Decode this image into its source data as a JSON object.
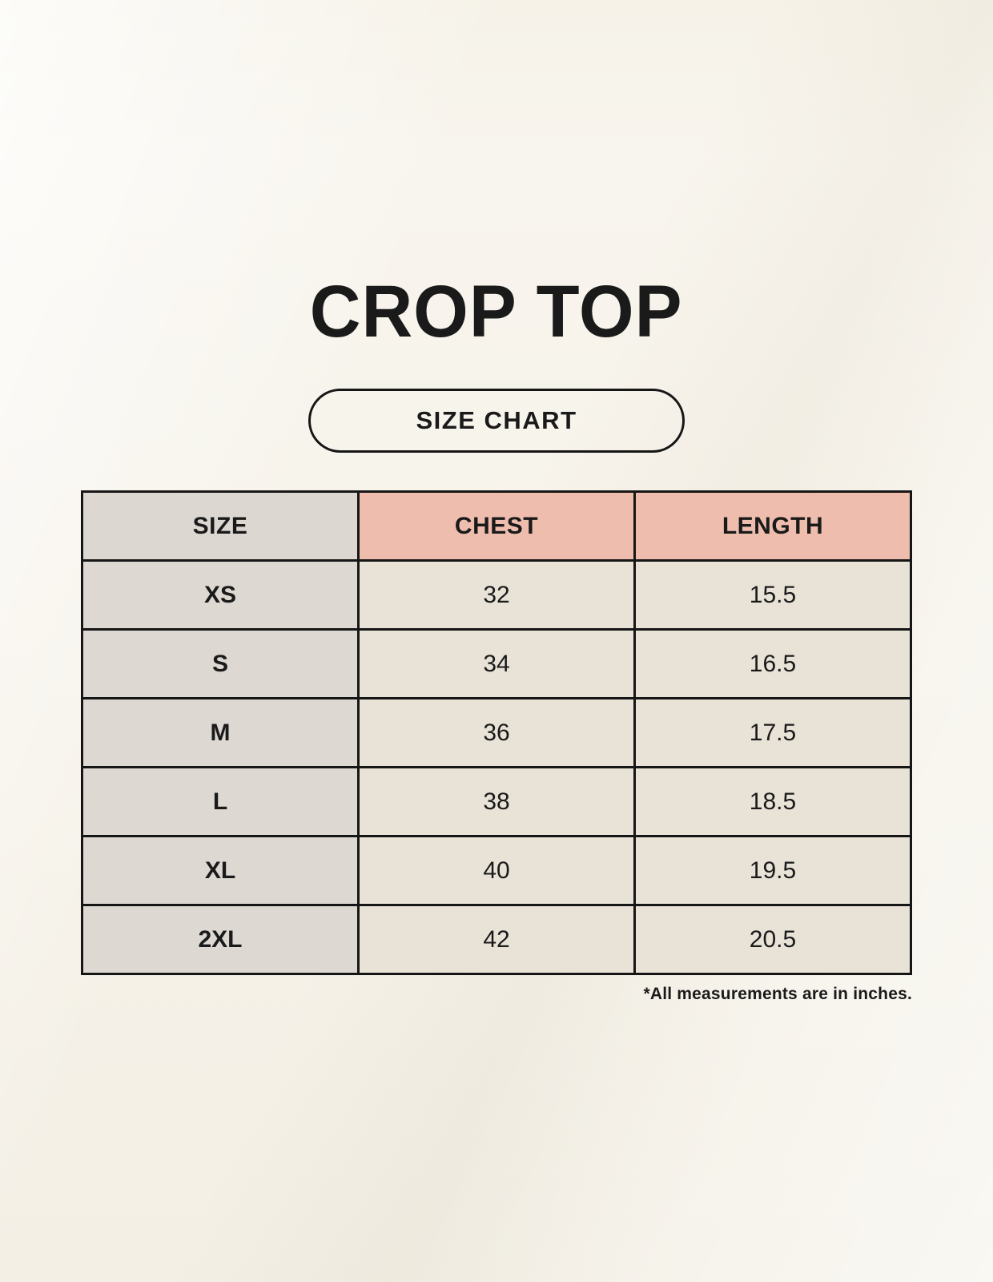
{
  "page": {
    "title": "CROP TOP",
    "size_chart_badge": "SIZE CHART",
    "footnote": "*All measurements are in inches."
  },
  "table": {
    "columns": [
      "SIZE",
      "CHEST",
      "LENGTH"
    ],
    "rows": [
      {
        "size": "XS",
        "chest": "32",
        "length": "15.5"
      },
      {
        "size": "S",
        "chest": "34",
        "length": "16.5"
      },
      {
        "size": "M",
        "chest": "36",
        "length": "17.5"
      },
      {
        "size": "L",
        "chest": "38",
        "length": "18.5"
      },
      {
        "size": "XL",
        "chest": "40",
        "length": "19.5"
      },
      {
        "size": "2XL",
        "chest": "42",
        "length": "20.5"
      }
    ]
  },
  "chart_data": {
    "type": "table",
    "title": "CROP TOP",
    "subtitle": "SIZE CHART",
    "columns": [
      "SIZE",
      "CHEST",
      "LENGTH"
    ],
    "rows": [
      [
        "XS",
        32,
        15.5
      ],
      [
        "S",
        34,
        16.5
      ],
      [
        "M",
        36,
        17.5
      ],
      [
        "L",
        38,
        18.5
      ],
      [
        "XL",
        40,
        19.5
      ],
      [
        "2XL",
        42,
        20.5
      ]
    ],
    "note": "*All measurements are in inches.",
    "units": "inches"
  },
  "colors": {
    "background": "#f7f3ea",
    "header_size_bg": "#ddd7d2",
    "header_accent_bg": "#eebdae",
    "size_column_bg": "#ded8d3",
    "cell_bg": "#e9e2d7",
    "border": "#161616",
    "text": "#1a1a1a"
  }
}
